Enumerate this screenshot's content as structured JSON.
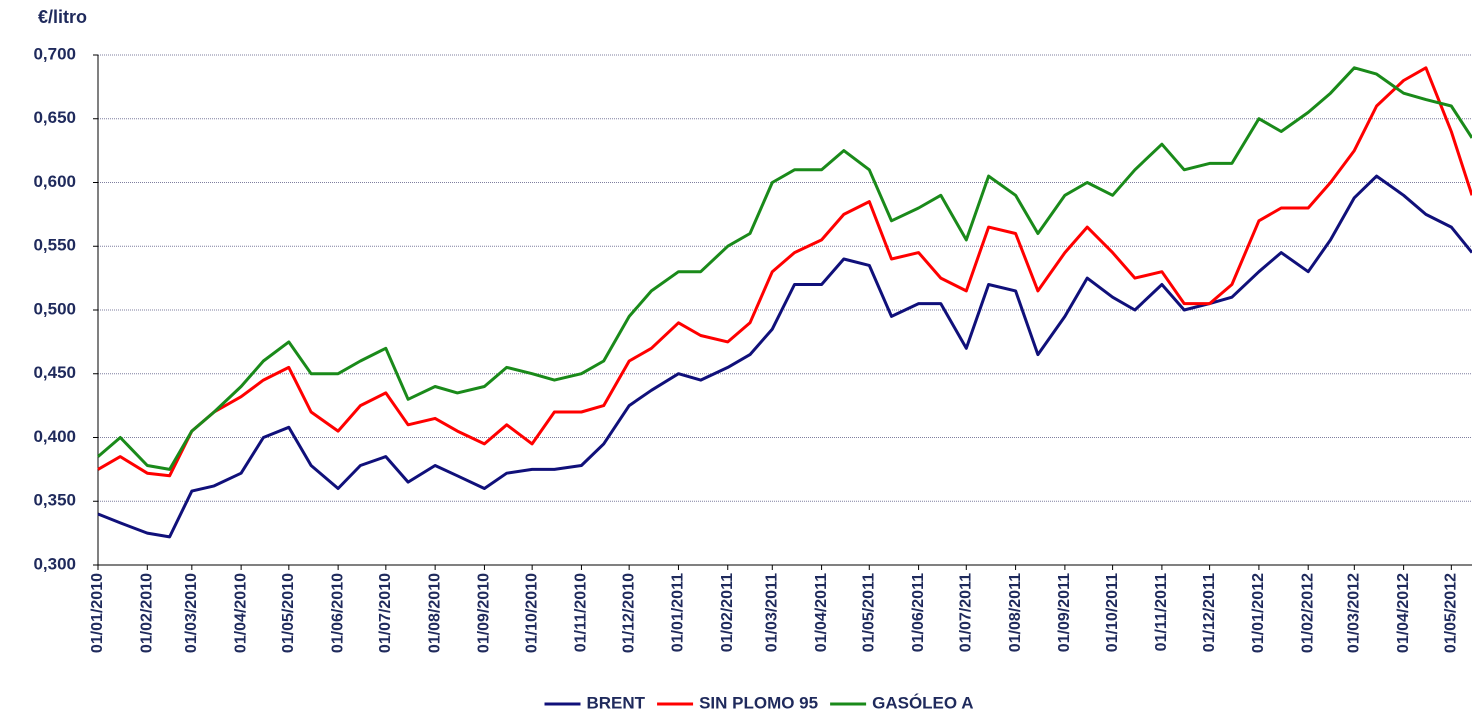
{
  "chart_data": {
    "type": "line",
    "y_label": "€/litro",
    "ylim": [
      0.3,
      0.7
    ],
    "yticks": [
      {
        "value": 0.3,
        "label": "0,300"
      },
      {
        "value": 0.35,
        "label": "0,350"
      },
      {
        "value": 0.4,
        "label": "0,400"
      },
      {
        "value": 0.45,
        "label": "0,450"
      },
      {
        "value": 0.5,
        "label": "0,500"
      },
      {
        "value": 0.55,
        "label": "0,550"
      },
      {
        "value": 0.6,
        "label": "0,600"
      },
      {
        "value": 0.65,
        "label": "0,650"
      },
      {
        "value": 0.7,
        "label": "0,700"
      }
    ],
    "grid": true,
    "legend": "bottom",
    "xlim": [
      "01/01/2010",
      "14/05/2012"
    ],
    "xticks": [
      "01/01/2010",
      "01/02/2010",
      "01/03/2010",
      "01/04/2010",
      "01/05/2010",
      "01/06/2010",
      "01/07/2010",
      "01/08/2010",
      "01/09/2010",
      "01/10/2010",
      "01/11/2010",
      "01/12/2010",
      "01/01/2011",
      "01/02/2011",
      "01/03/2011",
      "01/04/2011",
      "01/05/2011",
      "01/06/2011",
      "01/07/2011",
      "01/08/2011",
      "01/09/2011",
      "01/10/2011",
      "01/11/2011",
      "01/12/2011",
      "01/01/2012",
      "01/02/2012",
      "01/03/2012",
      "01/04/2012",
      "01/05/2012"
    ],
    "x": [
      "01/01/2010",
      "15/01/2010",
      "01/02/2010",
      "15/02/2010",
      "01/03/2010",
      "15/03/2010",
      "01/04/2010",
      "15/04/2010",
      "01/05/2010",
      "15/05/2010",
      "01/06/2010",
      "15/06/2010",
      "01/07/2010",
      "15/07/2010",
      "01/08/2010",
      "15/08/2010",
      "01/09/2010",
      "15/09/2010",
      "01/10/2010",
      "15/10/2010",
      "01/11/2010",
      "15/11/2010",
      "01/12/2010",
      "15/12/2010",
      "01/01/2011",
      "15/01/2011",
      "01/02/2011",
      "15/02/2011",
      "01/03/2011",
      "15/03/2011",
      "01/04/2011",
      "15/04/2011",
      "01/05/2011",
      "15/05/2011",
      "01/06/2011",
      "15/06/2011",
      "01/07/2011",
      "15/07/2011",
      "01/08/2011",
      "15/08/2011",
      "01/09/2011",
      "15/09/2011",
      "01/10/2011",
      "15/10/2011",
      "01/11/2011",
      "15/11/2011",
      "01/12/2011",
      "15/12/2011",
      "01/01/2012",
      "15/01/2012",
      "01/02/2012",
      "15/02/2012",
      "01/03/2012",
      "15/03/2012",
      "01/04/2012",
      "15/04/2012",
      "01/05/2012",
      "14/05/2012"
    ],
    "series": [
      {
        "name": "BRENT",
        "color": "#10107a",
        "values": [
          0.34,
          0.333,
          0.325,
          0.322,
          0.358,
          0.362,
          0.372,
          0.4,
          0.408,
          0.378,
          0.36,
          0.378,
          0.385,
          0.365,
          0.378,
          0.37,
          0.36,
          0.372,
          0.375,
          0.375,
          0.378,
          0.395,
          0.425,
          0.437,
          0.45,
          0.445,
          0.455,
          0.465,
          0.485,
          0.52,
          0.52,
          0.54,
          0.535,
          0.495,
          0.505,
          0.505,
          0.47,
          0.52,
          0.515,
          0.465,
          0.495,
          0.525,
          0.51,
          0.5,
          0.52,
          0.5,
          0.505,
          0.51,
          0.53,
          0.545,
          0.53,
          0.555,
          0.588,
          0.605,
          0.59,
          0.575,
          0.565,
          0.545
        ]
      },
      {
        "name": "SIN PLOMO 95",
        "color": "#ff0000",
        "values": [
          0.375,
          0.385,
          0.372,
          0.37,
          0.405,
          0.42,
          0.432,
          0.445,
          0.455,
          0.42,
          0.405,
          0.425,
          0.435,
          0.41,
          0.415,
          0.405,
          0.395,
          0.41,
          0.395,
          0.42,
          0.42,
          0.425,
          0.46,
          0.47,
          0.49,
          0.48,
          0.475,
          0.49,
          0.53,
          0.545,
          0.555,
          0.575,
          0.585,
          0.54,
          0.545,
          0.525,
          0.515,
          0.565,
          0.56,
          0.515,
          0.545,
          0.565,
          0.545,
          0.525,
          0.53,
          0.505,
          0.505,
          0.52,
          0.57,
          0.58,
          0.58,
          0.6,
          0.625,
          0.66,
          0.68,
          0.69,
          0.64,
          0.59
        ]
      },
      {
        "name": "GASÓLEO A",
        "color": "#1a8a1a",
        "values": [
          0.385,
          0.4,
          0.378,
          0.375,
          0.405,
          0.42,
          0.44,
          0.46,
          0.475,
          0.45,
          0.45,
          0.46,
          0.47,
          0.43,
          0.44,
          0.435,
          0.44,
          0.455,
          0.45,
          0.445,
          0.45,
          0.46,
          0.495,
          0.515,
          0.53,
          0.53,
          0.55,
          0.56,
          0.6,
          0.61,
          0.61,
          0.625,
          0.61,
          0.57,
          0.58,
          0.59,
          0.555,
          0.605,
          0.59,
          0.56,
          0.59,
          0.6,
          0.59,
          0.61,
          0.63,
          0.61,
          0.615,
          0.615,
          0.65,
          0.64,
          0.655,
          0.67,
          0.69,
          0.685,
          0.67,
          0.665,
          0.66,
          0.635
        ]
      }
    ]
  }
}
